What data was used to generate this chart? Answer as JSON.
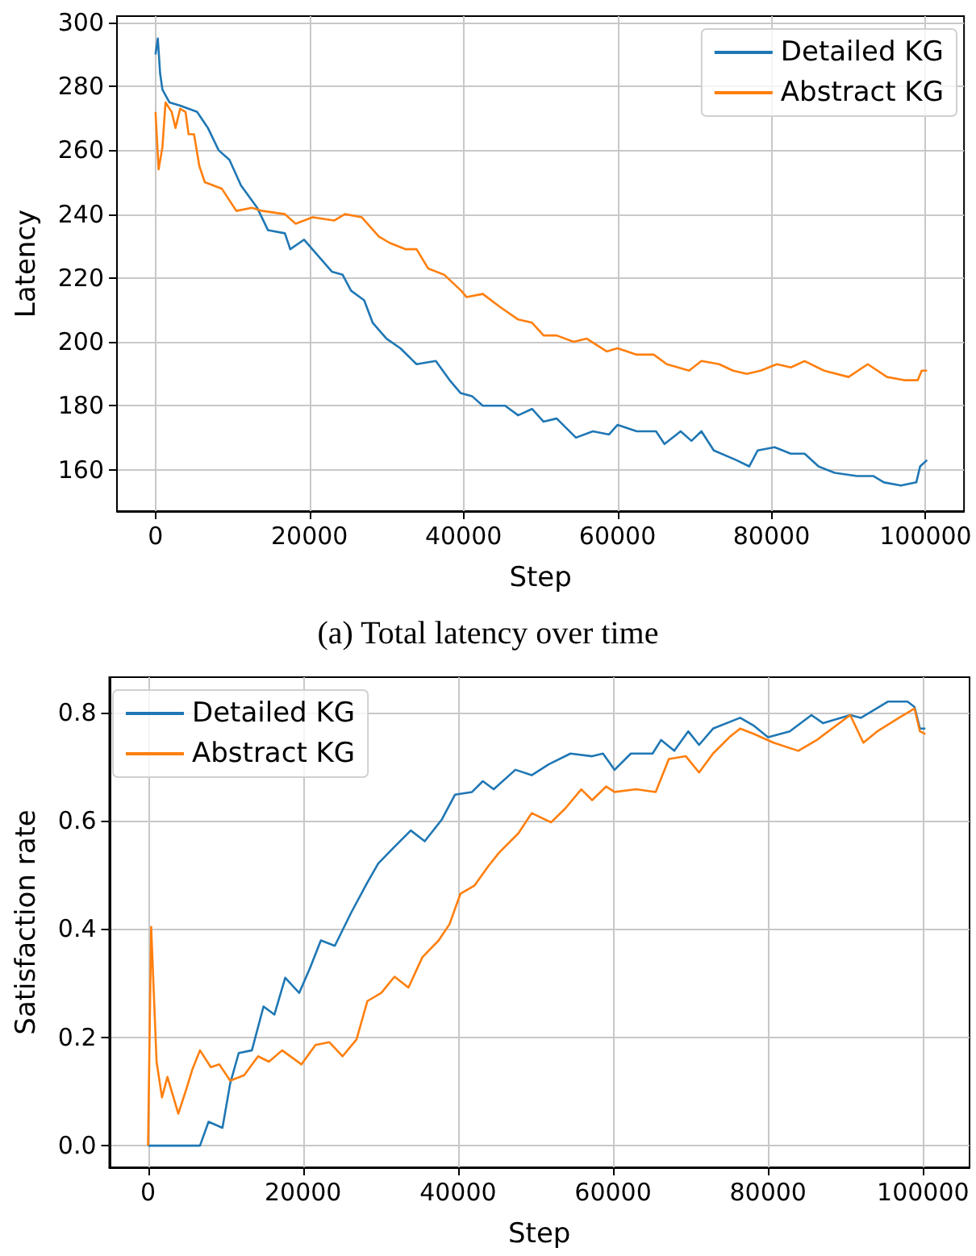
{
  "chart_data": [
    {
      "type": "line",
      "xlabel": "Step",
      "ylabel": "Latency",
      "annotations": [
        "(a) Total latency over time"
      ],
      "xlim": [
        -5000,
        105000
      ],
      "xticks": [
        0,
        20000,
        40000,
        60000,
        80000,
        100000
      ],
      "ylim": [
        147,
        302
      ],
      "yticks": [
        160,
        180,
        200,
        220,
        240,
        260,
        280,
        300
      ],
      "grid": true,
      "legend": "top right",
      "marker": "none",
      "line_style": "solid",
      "series": [
        {
          "name": "Detailed KG",
          "color": "#1f77b4",
          "x": [
            0,
            300,
            600,
            900,
            1800,
            3200,
            5400,
            6800,
            8200,
            9600,
            11100,
            13200,
            14600,
            16800,
            17500,
            19300,
            21100,
            22900,
            24300,
            25400,
            27100,
            28200,
            30000,
            31800,
            33900,
            36400,
            38200,
            39600,
            41100,
            42500,
            45400,
            47100,
            48900,
            50400,
            52100,
            54600,
            56800,
            58900,
            60000,
            62500,
            65000,
            66100,
            68200,
            69600,
            70900,
            72500,
            75400,
            77100,
            78200,
            80400,
            82500,
            84300,
            86100,
            88200,
            91100,
            93200,
            94600,
            96800,
            98800,
            99300,
            100200
          ],
          "values": [
            290,
            295,
            284,
            279,
            275,
            274,
            272,
            267,
            260,
            257,
            249,
            242,
            235,
            234,
            229,
            232,
            227,
            222,
            221,
            216,
            213,
            206,
            201,
            198,
            193,
            194,
            188,
            184,
            183,
            180,
            180,
            177,
            179,
            175,
            176,
            170,
            172,
            171,
            174,
            172,
            172,
            168,
            172,
            169,
            172,
            166,
            163,
            161,
            166,
            167,
            165,
            165,
            161,
            159,
            158,
            158,
            156,
            155,
            156,
            161,
            163
          ]
        },
        {
          "name": "Abstract KG",
          "color": "#ff7f0e",
          "x": [
            0,
            400,
            900,
            1300,
            2100,
            2600,
            3200,
            3900,
            4300,
            5000,
            5700,
            6400,
            8600,
            10500,
            12500,
            13900,
            16800,
            18200,
            20400,
            23200,
            24600,
            26800,
            29000,
            30400,
            32500,
            33900,
            35400,
            37500,
            39700,
            40400,
            42500,
            44700,
            47100,
            48900,
            50400,
            52100,
            54300,
            56000,
            58600,
            60000,
            62500,
            64700,
            66400,
            69300,
            70900,
            73200,
            75000,
            76800,
            78600,
            80700,
            82500,
            84300,
            86800,
            90000,
            92500,
            95000,
            97200,
            99000,
            99500,
            100200
          ],
          "values": [
            272,
            254,
            261,
            275,
            272,
            267,
            273,
            272,
            265,
            265,
            255,
            250,
            248,
            241,
            242,
            241,
            240,
            237,
            239,
            238,
            240,
            239,
            233,
            231,
            229,
            229,
            223,
            221,
            216,
            214,
            215,
            211,
            207,
            206,
            202,
            202,
            200,
            201,
            197,
            198,
            196,
            196,
            193,
            191,
            194,
            193,
            191,
            190,
            191,
            193,
            192,
            194,
            191,
            189,
            193,
            189,
            188,
            188,
            191,
            191
          ]
        }
      ]
    },
    {
      "type": "line",
      "xlabel": "Step",
      "ylabel": "Satisfaction rate",
      "xlim": [
        -5000,
        106000
      ],
      "xticks": [
        0,
        20000,
        40000,
        60000,
        80000,
        100000
      ],
      "ylim": [
        -0.04,
        0.865
      ],
      "yticks": [
        {
          "value": 0,
          "label": "0.0"
        },
        {
          "value": 0.2,
          "label": "0.2"
        },
        {
          "value": 0.4,
          "label": "0.4"
        },
        {
          "value": 0.6,
          "label": "0.6"
        },
        {
          "value": 0.8,
          "label": "0.8"
        }
      ],
      "grid": true,
      "legend": "top left",
      "marker": "none",
      "line_style": "solid",
      "series": [
        {
          "name": "Detailed KG",
          "color": "#1f77b4",
          "x": [
            0,
            6700,
            7800,
            9600,
            10600,
            11700,
            13400,
            14900,
            16300,
            17700,
            19500,
            20900,
            22300,
            24100,
            26200,
            28300,
            29700,
            31800,
            33900,
            35700,
            37900,
            39600,
            41800,
            43200,
            44600,
            47400,
            49500,
            51700,
            54500,
            57300,
            58700,
            60200,
            62300,
            65100,
            66200,
            67900,
            69700,
            71100,
            72900,
            76400,
            78200,
            80000,
            82800,
            85600,
            87100,
            90600,
            92000,
            95500,
            98000,
            98900,
            99600,
            100300
          ],
          "values": [
            0,
            0,
            0.044,
            0.033,
            0.115,
            0.171,
            0.176,
            0.257,
            0.242,
            0.31,
            0.282,
            0.328,
            0.379,
            0.369,
            0.43,
            0.486,
            0.521,
            0.552,
            0.582,
            0.562,
            0.602,
            0.648,
            0.653,
            0.673,
            0.658,
            0.694,
            0.684,
            0.704,
            0.724,
            0.719,
            0.724,
            0.694,
            0.724,
            0.724,
            0.749,
            0.729,
            0.765,
            0.74,
            0.77,
            0.79,
            0.775,
            0.754,
            0.765,
            0.795,
            0.78,
            0.795,
            0.79,
            0.82,
            0.82,
            0.81,
            0.77,
            0.77
          ]
        },
        {
          "name": "Abstract KG",
          "color": "#ff7f0e",
          "x": [
            0,
            400,
            1100,
            1800,
            2500,
            3900,
            4950,
            5700,
            6700,
            8100,
            9200,
            10600,
            12400,
            14200,
            15600,
            17300,
            19800,
            21600,
            23400,
            25100,
            26900,
            28300,
            30100,
            31800,
            33600,
            35400,
            37500,
            38900,
            40300,
            42100,
            43900,
            45300,
            47800,
            49500,
            52000,
            53800,
            55900,
            57300,
            59100,
            60200,
            63000,
            65500,
            67200,
            69400,
            71100,
            72900,
            75000,
            76400,
            78200,
            80700,
            83900,
            86300,
            90600,
            92300,
            94100,
            96900,
            98900,
            99600,
            100300
          ],
          "values": [
            0,
            0.404,
            0.155,
            0.089,
            0.127,
            0.059,
            0.105,
            0.14,
            0.176,
            0.145,
            0.15,
            0.12,
            0.13,
            0.165,
            0.155,
            0.176,
            0.15,
            0.186,
            0.191,
            0.165,
            0.196,
            0.267,
            0.282,
            0.312,
            0.292,
            0.348,
            0.379,
            0.409,
            0.465,
            0.48,
            0.516,
            0.541,
            0.577,
            0.614,
            0.597,
            0.622,
            0.658,
            0.638,
            0.663,
            0.653,
            0.658,
            0.653,
            0.714,
            0.719,
            0.689,
            0.724,
            0.754,
            0.77,
            0.76,
            0.744,
            0.729,
            0.749,
            0.795,
            0.744,
            0.765,
            0.79,
            0.807,
            0.765,
            0.76
          ]
        }
      ]
    }
  ]
}
